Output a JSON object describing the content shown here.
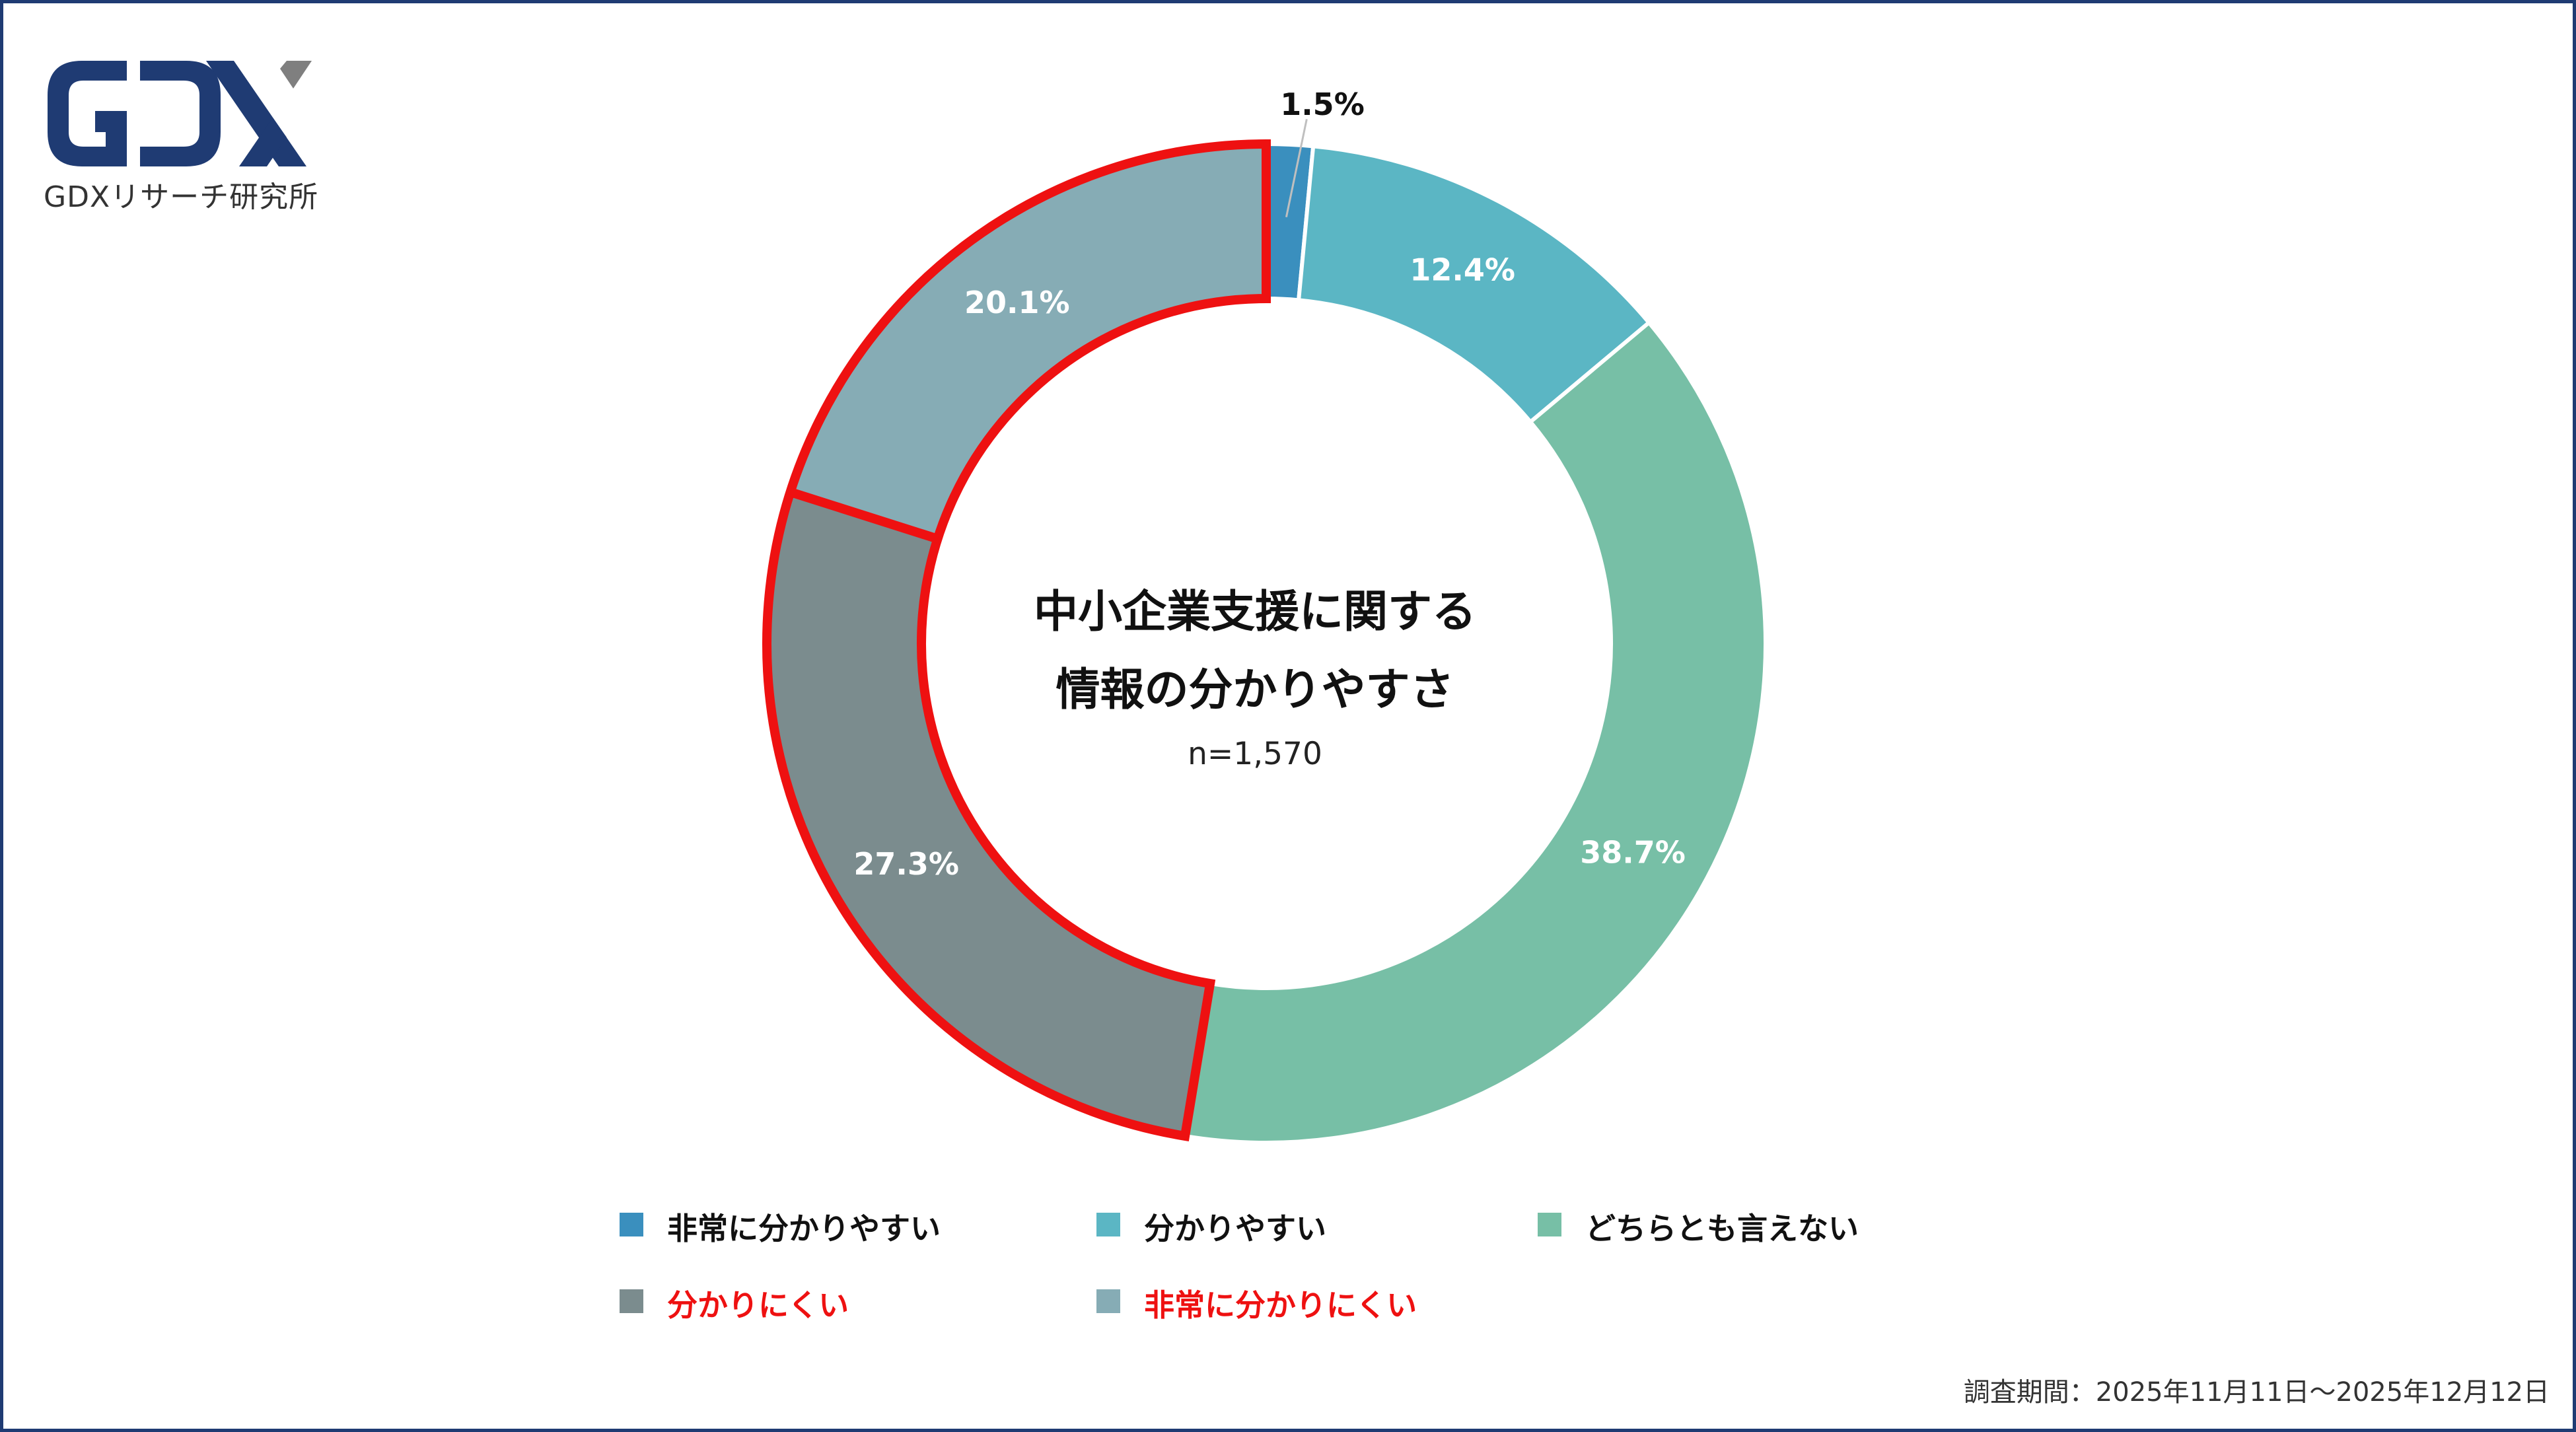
{
  "brand": {
    "logo_text": "GDX",
    "subtitle": "GDXリサーチ研究所",
    "colors": {
      "navy": "#1f3b73",
      "gray": "#7f7f7f"
    }
  },
  "chart_data": {
    "type": "pie",
    "variant": "donut",
    "title": "中小企業支援に関する情報の分かりやすさ",
    "title_lines": [
      "中小企業支援に関する",
      "情報の分かりやすさ"
    ],
    "sample_size": "n=1,570",
    "series": [
      {
        "name": "非常に分かりやすい",
        "value": 1.5,
        "label": "1.5%",
        "color": "#3a8fbe"
      },
      {
        "name": "分かりやすい",
        "value": 12.4,
        "label": "12.4%",
        "color": "#5bb6c4"
      },
      {
        "name": "どちらとも言えない",
        "value": 38.7,
        "label": "38.7%",
        "color": "#77bfa6"
      },
      {
        "name": "分かりにくい",
        "value": 27.3,
        "label": "27.3%",
        "color": "#7b8c8e"
      },
      {
        "name": "非常に分かりにくい",
        "value": 20.1,
        "label": "20.1%",
        "color": "#86acb5"
      }
    ],
    "highlight": {
      "series": [
        "分かりにくい",
        "非常に分かりにくい"
      ],
      "color": "#ee1111"
    },
    "legend_placement": "bottom"
  },
  "legend": {
    "items": [
      {
        "label": "非常に分かりやすい",
        "color": "#3a8fbe",
        "text_color": "#111111"
      },
      {
        "label": "分かりやすい",
        "color": "#5bb6c4",
        "text_color": "#111111"
      },
      {
        "label": "どちらとも言えない",
        "color": "#77bfa6",
        "text_color": "#111111"
      },
      {
        "label": "分かりにくい",
        "color": "#7b8c8e",
        "text_color": "#ee1111"
      },
      {
        "label": "非常に分かりにくい",
        "color": "#86acb5",
        "text_color": "#ee1111"
      }
    ]
  },
  "footer": {
    "survey_period": "調査期間：2025年11月11日～2025年12月12日"
  }
}
